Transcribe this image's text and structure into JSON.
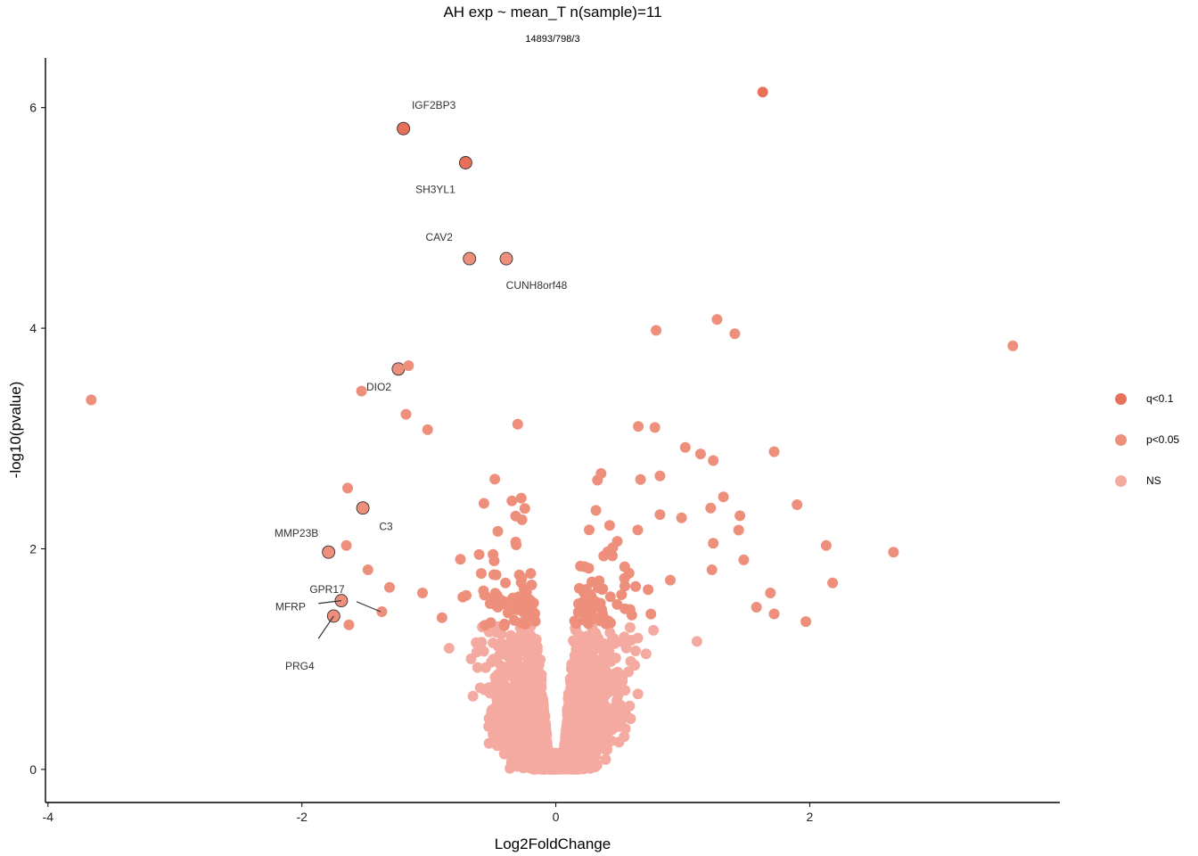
{
  "title": "AH exp ~ mean_T n(sample)=11",
  "subtitle": "14893/798/3",
  "chart_data": {
    "type": "scatter",
    "xlabel": "Log2FoldChange",
    "ylabel": "-log10(pvalue)",
    "xlim": [
      -4.02,
      3.97
    ],
    "ylim": [
      -0.3,
      6.45
    ],
    "xticks": [
      -4,
      -2,
      0,
      2
    ],
    "yticks": [
      0,
      2,
      4,
      6
    ],
    "legend_position": "right",
    "colors": {
      "q<0.1": "#e8705a",
      "p<0.05": "#ee8f7c",
      "NS": "#f4aaa0"
    },
    "legend": [
      {
        "label": "q<0.1",
        "color": "#e8705a"
      },
      {
        "label": "p<0.05",
        "color": "#ee8f7c"
      },
      {
        "label": "NS",
        "color": "#f4aaa0"
      }
    ],
    "highlighted_points": [
      {
        "x": 1.63,
        "y": 6.14,
        "group": "q<0.1"
      },
      {
        "x": -1.2,
        "y": 5.81,
        "group": "q<0.1"
      },
      {
        "x": -0.71,
        "y": 5.5,
        "group": "q<0.1"
      },
      {
        "x": -0.68,
        "y": 4.63,
        "group": "p<0.05"
      },
      {
        "x": -0.39,
        "y": 4.63,
        "group": "p<0.05"
      },
      {
        "x": 0.79,
        "y": 3.98,
        "group": "p<0.05"
      },
      {
        "x": 1.27,
        "y": 4.08,
        "group": "p<0.05"
      },
      {
        "x": 1.41,
        "y": 3.95,
        "group": "p<0.05"
      },
      {
        "x": 3.6,
        "y": 3.84,
        "group": "p<0.05"
      },
      {
        "x": -3.66,
        "y": 3.35,
        "group": "p<0.05"
      },
      {
        "x": -1.24,
        "y": 3.63,
        "group": "p<0.05"
      },
      {
        "x": -1.16,
        "y": 3.66,
        "group": "p<0.05"
      },
      {
        "x": -1.53,
        "y": 3.43,
        "group": "p<0.05"
      },
      {
        "x": -1.18,
        "y": 3.22,
        "group": "p<0.05"
      },
      {
        "x": -1.01,
        "y": 3.08,
        "group": "p<0.05"
      },
      {
        "x": -0.3,
        "y": 3.13,
        "group": "p<0.05"
      },
      {
        "x": 0.65,
        "y": 3.11,
        "group": "p<0.05"
      },
      {
        "x": 0.78,
        "y": 3.1,
        "group": "p<0.05"
      },
      {
        "x": 1.02,
        "y": 2.92,
        "group": "p<0.05"
      },
      {
        "x": 1.14,
        "y": 2.86,
        "group": "p<0.05"
      },
      {
        "x": 1.24,
        "y": 2.8,
        "group": "p<0.05"
      },
      {
        "x": 1.72,
        "y": 2.88,
        "group": "p<0.05"
      },
      {
        "x": 0.82,
        "y": 2.66,
        "group": "p<0.05"
      },
      {
        "x": 1.32,
        "y": 2.47,
        "group": "p<0.05"
      },
      {
        "x": 1.22,
        "y": 2.37,
        "group": "p<0.05"
      },
      {
        "x": 1.9,
        "y": 2.4,
        "group": "p<0.05"
      },
      {
        "x": 1.45,
        "y": 2.3,
        "group": "p<0.05"
      },
      {
        "x": 1.44,
        "y": 2.17,
        "group": "p<0.05"
      },
      {
        "x": 1.24,
        "y": 2.05,
        "group": "p<0.05"
      },
      {
        "x": 2.13,
        "y": 2.03,
        "group": "p<0.05"
      },
      {
        "x": 2.66,
        "y": 1.97,
        "group": "p<0.05"
      },
      {
        "x": 1.48,
        "y": 1.9,
        "group": "p<0.05"
      },
      {
        "x": 2.18,
        "y": 1.69,
        "group": "p<0.05"
      },
      {
        "x": 1.69,
        "y": 1.6,
        "group": "p<0.05"
      },
      {
        "x": 1.58,
        "y": 1.47,
        "group": "p<0.05"
      },
      {
        "x": 1.72,
        "y": 1.41,
        "group": "p<0.05"
      },
      {
        "x": 1.97,
        "y": 1.34,
        "group": "p<0.05"
      },
      {
        "x": 0.99,
        "y": 2.28,
        "group": "p<0.05"
      },
      {
        "x": 0.82,
        "y": 2.31,
        "group": "p<0.05"
      },
      {
        "x": 1.23,
        "y": 1.81,
        "group": "p<0.05"
      },
      {
        "x": -1.64,
        "y": 2.55,
        "group": "p<0.05"
      },
      {
        "x": -1.52,
        "y": 2.37,
        "group": "p<0.05"
      },
      {
        "x": -1.79,
        "y": 1.97,
        "group": "p<0.05"
      },
      {
        "x": -1.65,
        "y": 2.03,
        "group": "p<0.05"
      },
      {
        "x": -1.69,
        "y": 1.53,
        "group": "p<0.05"
      },
      {
        "x": -1.37,
        "y": 1.43,
        "group": "p<0.05"
      },
      {
        "x": -1.75,
        "y": 1.39,
        "group": "p<0.05"
      },
      {
        "x": -1.63,
        "y": 1.31,
        "group": "p<0.05"
      },
      {
        "x": -1.48,
        "y": 1.81,
        "group": "p<0.05"
      },
      {
        "x": -1.31,
        "y": 1.65,
        "group": "p<0.05"
      },
      {
        "x": -1.05,
        "y": 1.6,
        "group": "p<0.05"
      }
    ],
    "bulk_distribution": {
      "description": "volcano shape of ~14893 genes: NS below -log10(pvalue)=1.3, p<0.05 above",
      "n_points": 14893,
      "significance_threshold_y": 1.3
    },
    "annotations": [
      {
        "label": "IGF2BP3",
        "x": -1.2,
        "y": 5.81
      },
      {
        "label": "SH3YL1",
        "x": -0.71,
        "y": 5.5
      },
      {
        "label": "CAV2",
        "x": -0.68,
        "y": 4.63
      },
      {
        "label": "CUNH8orf48",
        "x": -0.39,
        "y": 4.63
      },
      {
        "label": "DIO2",
        "x": -1.24,
        "y": 3.63
      },
      {
        "label": "C3",
        "x": -1.52,
        "y": 2.37
      },
      {
        "label": "MMP23B",
        "x": -1.79,
        "y": 1.97
      },
      {
        "label": "GPR17",
        "x": -1.38,
        "y": 1.43
      },
      {
        "label": "MFRP",
        "x": -1.69,
        "y": 1.53
      },
      {
        "label": "PRG4",
        "x": -1.75,
        "y": 1.39
      }
    ]
  }
}
